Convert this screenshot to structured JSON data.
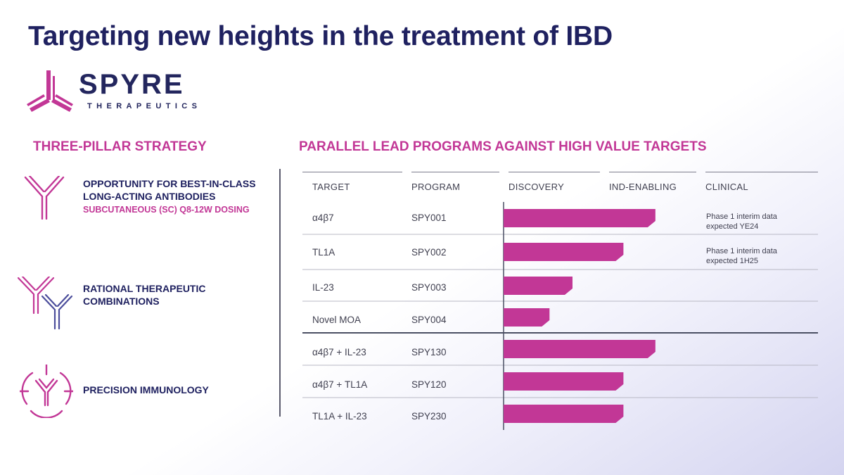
{
  "page": {
    "title": "Targeting new heights in the treatment of IBD"
  },
  "logo": {
    "name": "SPYRE",
    "tagline": "THERAPEUTICS"
  },
  "pillars": {
    "heading": "THREE-PILLAR STRATEGY",
    "items": [
      {
        "title_line1": "OPPORTUNITY FOR BEST-IN-CLASS",
        "title_line2": "LONG-ACTING ANTIBODIES",
        "subtitle": "SUBCUTANEOUS (SC) Q8-12W DOSING",
        "icon": "antibody-icon"
      },
      {
        "title_line1": "RATIONAL THERAPEUTIC",
        "title_line2": "COMBINATIONS",
        "icon": "dual-antibody-icon"
      },
      {
        "title_line1": "PRECISION IMMUNOLOGY",
        "icon": "target-antibody-icon"
      }
    ]
  },
  "colors": {
    "accent": "#c23796",
    "navy": "#1f2160",
    "combo_blue": "#4b4d9b"
  },
  "pipeline": {
    "heading": "PARALLEL LEAD PROGRAMS AGAINST HIGH VALUE TARGETS",
    "columns": [
      "TARGET",
      "PROGRAM",
      "DISCOVERY",
      "IND-ENABLING",
      "CLINICAL"
    ]
  },
  "chart_data": {
    "type": "bar",
    "orientation": "horizontal",
    "title": "PARALLEL LEAD PROGRAMS AGAINST HIGH VALUE TARGETS",
    "stages": [
      "DISCOVERY",
      "IND-ENABLING",
      "CLINICAL"
    ],
    "xlim": [
      0,
      3
    ],
    "rows": [
      {
        "target": "α4β7",
        "program": "SPY001",
        "progress": 1.52,
        "note_line1": "Phase 1 interim data",
        "note_line2": "expected YE24"
      },
      {
        "target": "TL1A",
        "program": "SPY002",
        "progress": 1.2,
        "note_line1": "Phase 1 interim data",
        "note_line2": "expected 1H25"
      },
      {
        "target": "IL-23",
        "program": "SPY003",
        "progress": 0.69
      },
      {
        "target": "Novel MOA",
        "program": "SPY004",
        "progress": 0.46
      },
      {
        "target": "α4β7 + IL-23",
        "program": "SPY130",
        "progress": 1.52
      },
      {
        "target": "α4β7 + TL1A",
        "program": "SPY120",
        "progress": 1.2
      },
      {
        "target": "TL1A + IL-23",
        "program": "SPY230",
        "progress": 1.2
      }
    ]
  }
}
